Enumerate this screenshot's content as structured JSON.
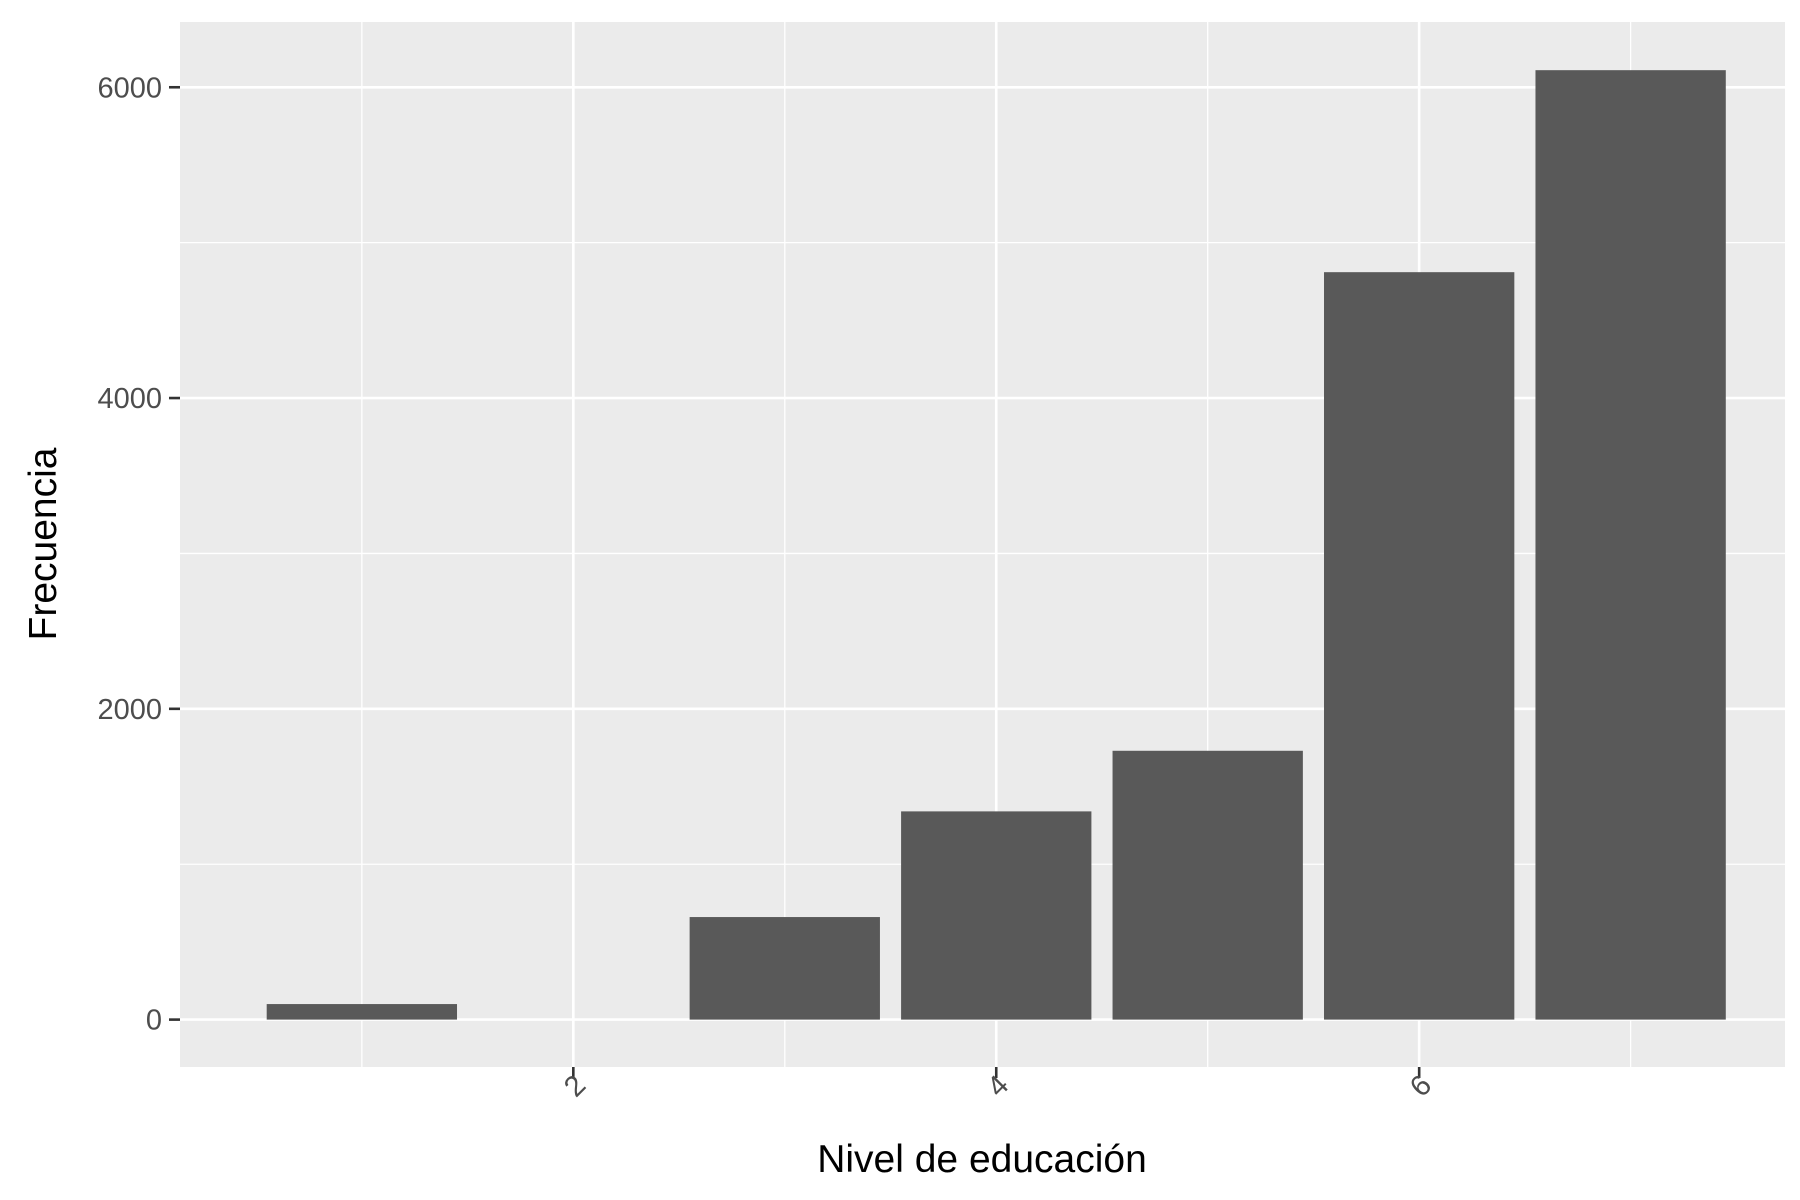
{
  "chart_data": {
    "type": "bar",
    "x": [
      1,
      2,
      3,
      4,
      5,
      6,
      7
    ],
    "values": [
      100,
      0,
      660,
      1340,
      1730,
      4810,
      6110
    ],
    "xlabel": "Nivel de educación",
    "ylabel": "Frecuencia",
    "xlim": [
      0.14,
      7.73
    ],
    "ylim": [
      -305,
      6420
    ],
    "x_ticks": [
      2,
      4,
      6
    ],
    "x_tick_labels": [
      "2",
      "4",
      "6"
    ],
    "y_ticks": [
      0,
      2000,
      4000,
      6000
    ],
    "y_tick_labels": [
      "0",
      "2000",
      "4000",
      "6000"
    ],
    "x_minor_ticks": [
      1,
      3,
      5,
      7
    ],
    "y_minor_ticks": [
      1000,
      3000,
      5000
    ],
    "x_tick_label_rotation": "-45",
    "bar_width": 0.9,
    "grid": true,
    "colors": {
      "bar": "#595959",
      "panel": "#ebebeb",
      "grid": "#ffffff"
    }
  }
}
